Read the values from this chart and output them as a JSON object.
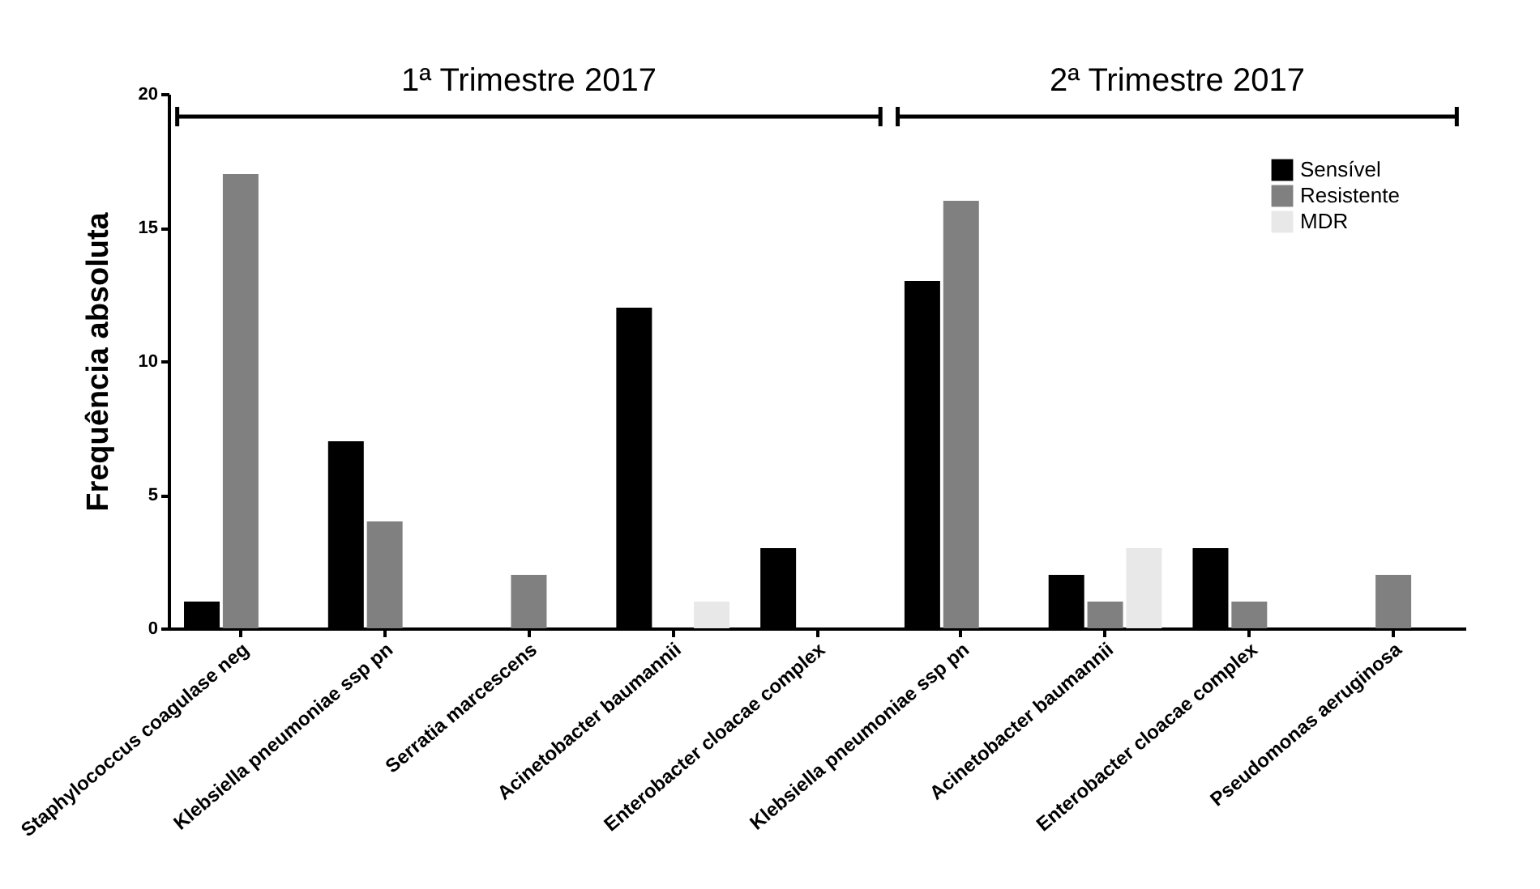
{
  "chart_data": {
    "type": "bar",
    "categories": [
      "Staphylococcus coagulase neg",
      "Klebsiella pneumoniae ssp pn",
      "Serratia marcescens",
      "Acinetobacter baumannii",
      "Enterobacter cloacae complex",
      "Klebsiella pneumoniae ssp pn",
      "Acinetobacter baumannii",
      "Enterobacter cloacae complex",
      "Pseudomonas aeruginosa"
    ],
    "series": [
      {
        "name": "Sensível",
        "color": "#000000",
        "values": [
          1,
          7,
          null,
          12,
          3,
          13,
          2,
          3,
          null
        ]
      },
      {
        "name": "Resistente",
        "color": "#808080",
        "values": [
          17,
          4,
          2,
          null,
          null,
          16,
          1,
          1,
          2
        ]
      },
      {
        "name": "MDR",
        "color": "#e8e8e8",
        "values": [
          null,
          null,
          null,
          1,
          null,
          null,
          3,
          null,
          null
        ]
      }
    ],
    "ylabel": "Frequência absoluta",
    "ylim": [
      0,
      20
    ],
    "yticks": [
      0,
      5,
      10,
      15,
      20
    ],
    "annotations": [
      "1ª Trimestre 2017",
      "2ª Trimestre 2017"
    ],
    "grid": false,
    "legend": "top right"
  }
}
